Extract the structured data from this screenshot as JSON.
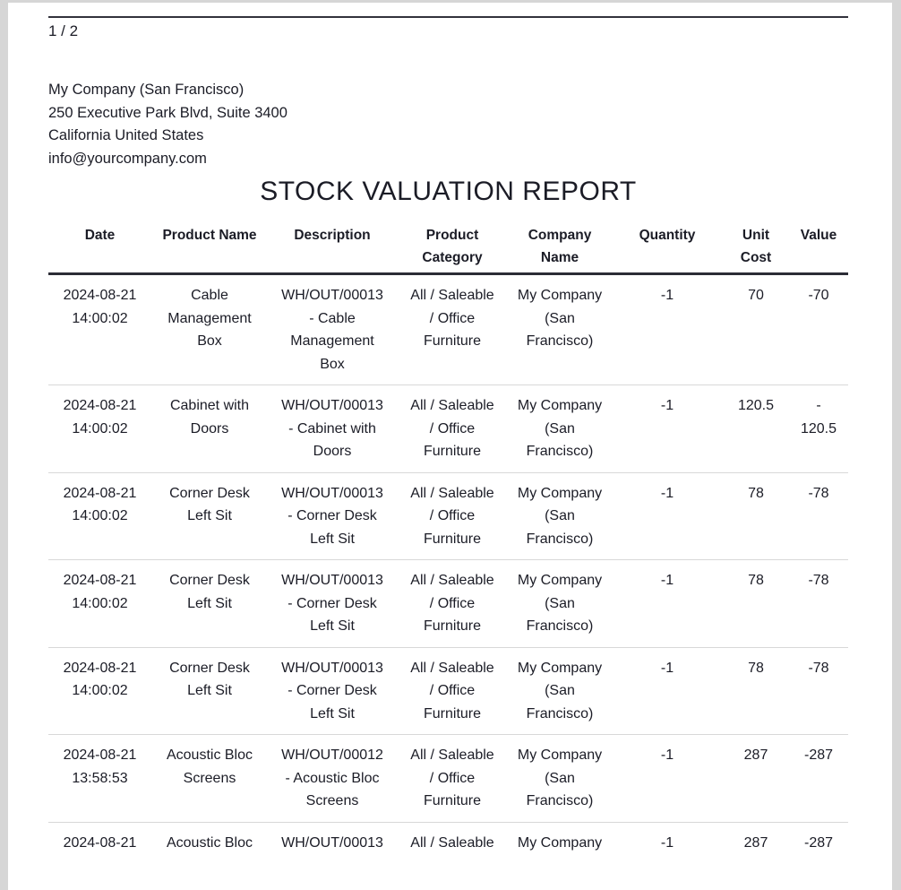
{
  "page": {
    "page_indicator": "1 / 2",
    "company": {
      "name": "My Company (San Francisco)",
      "address_line1": "250 Executive Park Blvd, Suite 3400",
      "address_line2": "California United States",
      "email": "info@yourcompany.com"
    },
    "title": "STOCK VALUATION REPORT"
  },
  "table": {
    "columns": [
      {
        "label": "Date"
      },
      {
        "label": "Product Name"
      },
      {
        "label": "Description"
      },
      {
        "label": "Product\nCategory"
      },
      {
        "label": "Company\nName"
      },
      {
        "label": "Quantity"
      },
      {
        "label": "Unit\nCost"
      },
      {
        "label": "Value"
      }
    ],
    "rows": [
      {
        "date": "2024-08-21\n14:00:02",
        "product": "Cable\nManagement\nBox",
        "description": "WH/OUT/00013\n- Cable\nManagement\nBox",
        "category": "All / Saleable\n/ Office\nFurniture",
        "company": "My Company\n(San\nFrancisco)",
        "quantity": "-1",
        "unit_cost": "70",
        "value": "-70"
      },
      {
        "date": "2024-08-21\n14:00:02",
        "product": "Cabinet with\nDoors",
        "description": "WH/OUT/00013\n- Cabinet with\nDoors",
        "category": "All / Saleable\n/ Office\nFurniture",
        "company": "My Company\n(San\nFrancisco)",
        "quantity": "-1",
        "unit_cost": "120.5",
        "value": "-\n120.5"
      },
      {
        "date": "2024-08-21\n14:00:02",
        "product": "Corner Desk\nLeft Sit",
        "description": "WH/OUT/00013\n- Corner Desk\nLeft Sit",
        "category": "All / Saleable\n/ Office\nFurniture",
        "company": "My Company\n(San\nFrancisco)",
        "quantity": "-1",
        "unit_cost": "78",
        "value": "-78"
      },
      {
        "date": "2024-08-21\n14:00:02",
        "product": "Corner Desk\nLeft Sit",
        "description": "WH/OUT/00013\n- Corner Desk\nLeft Sit",
        "category": "All / Saleable\n/ Office\nFurniture",
        "company": "My Company\n(San\nFrancisco)",
        "quantity": "-1",
        "unit_cost": "78",
        "value": "-78"
      },
      {
        "date": "2024-08-21\n14:00:02",
        "product": "Corner Desk\nLeft Sit",
        "description": "WH/OUT/00013\n- Corner Desk\nLeft Sit",
        "category": "All / Saleable\n/ Office\nFurniture",
        "company": "My Company\n(San\nFrancisco)",
        "quantity": "-1",
        "unit_cost": "78",
        "value": "-78"
      },
      {
        "date": "2024-08-21\n13:58:53",
        "product": "Acoustic Bloc\nScreens",
        "description": "WH/OUT/00012\n- Acoustic Bloc\nScreens",
        "category": "All / Saleable\n/ Office\nFurniture",
        "company": "My Company\n(San\nFrancisco)",
        "quantity": "-1",
        "unit_cost": "287",
        "value": "-287"
      },
      {
        "date": "2024-08-21",
        "product": "Acoustic Bloc",
        "description": "WH/OUT/00013",
        "category": "All / Saleable",
        "company": "My Company",
        "quantity": "-1",
        "unit_cost": "287",
        "value": "-287"
      }
    ]
  },
  "colors": {
    "text": "#1b1c26",
    "header_rule": "#32323c",
    "table_header_border": "#2b2c36",
    "row_separator": "#d8d8d8",
    "page_background": "#ffffff",
    "canvas_background": "#d6d6d6"
  }
}
